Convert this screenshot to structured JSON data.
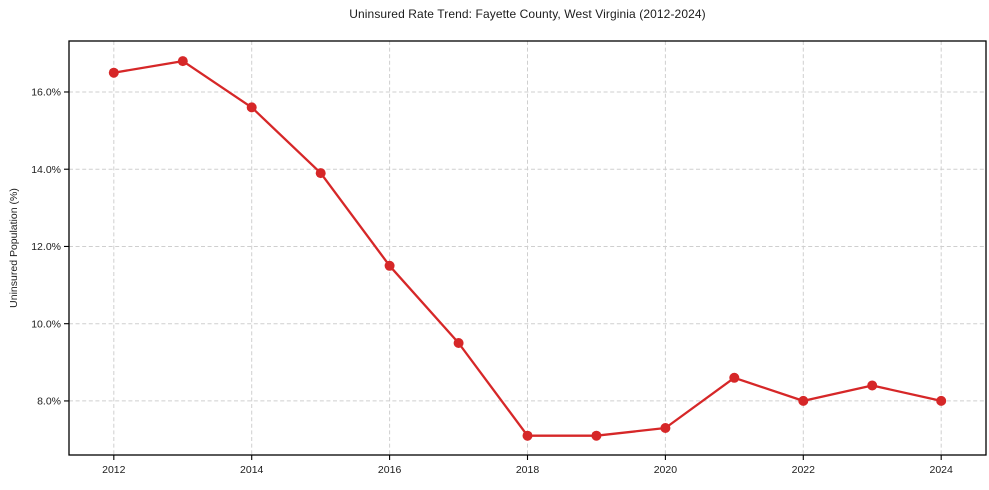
{
  "chart_data": {
    "type": "line",
    "title": "Uninsured Rate Trend: Fayette County, West Virginia (2012-2024)",
    "xlabel": "",
    "ylabel": "Uninsured Population (%)",
    "x": [
      2012,
      2013,
      2014,
      2015,
      2016,
      2017,
      2018,
      2019,
      2020,
      2021,
      2022,
      2023,
      2024
    ],
    "values": [
      16.5,
      16.8,
      15.6,
      13.9,
      11.5,
      9.5,
      7.1,
      7.1,
      7.3,
      8.6,
      8.0,
      8.4,
      8.0
    ],
    "xlim": [
      2011.35,
      2024.65
    ],
    "ylim": [
      6.6,
      17.32
    ],
    "xticks": [
      2012,
      2014,
      2016,
      2018,
      2020,
      2022,
      2024
    ],
    "xtick_labels": [
      "2012",
      "2014",
      "2016",
      "2018",
      "2020",
      "2022",
      "2024"
    ],
    "yticks": [
      8,
      10,
      12,
      14,
      16
    ],
    "ytick_labels": [
      "8.0%",
      "10.0%",
      "12.0%",
      "14.0%",
      "16.0%"
    ],
    "grid": true,
    "grid_style": "dashed",
    "legend": false,
    "marker": "circle",
    "colors": {
      "line": "#d62728",
      "grid": "#cfcfcf",
      "axis": "#000000",
      "text": "#1c1c1c",
      "background": "#ffffff"
    }
  }
}
